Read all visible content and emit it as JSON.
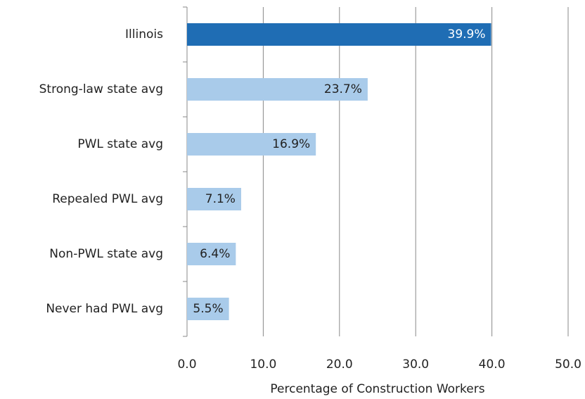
{
  "chart_data": {
    "type": "hbar",
    "x_label": "Percentage of Construction Workers",
    "categories": [
      "Illinois",
      "Strong-law state avg",
      "PWL state avg",
      "Repealed PWL avg",
      "Non-PWL state avg",
      "Never had PWL avg"
    ],
    "values": [
      39.9,
      23.7,
      16.9,
      7.1,
      6.4,
      5.5
    ],
    "value_labels": [
      "39.9%",
      "23.7%",
      "16.9%",
      "7.1%",
      "6.4%",
      "5.5%"
    ],
    "colors": [
      "#1f6db4",
      "#a9cbea",
      "#a9cbea",
      "#a9cbea",
      "#a9cbea",
      "#a9cbea"
    ],
    "xlim": [
      0,
      50
    ],
    "xticks": [
      {
        "value": 0,
        "label": "0.0"
      },
      {
        "value": 10,
        "label": "10.0"
      },
      {
        "value": 20,
        "label": "20.0"
      },
      {
        "value": 30,
        "label": "30.0"
      },
      {
        "value": 40,
        "label": "40.0"
      },
      {
        "value": 50,
        "label": "50.0"
      }
    ],
    "grid": true
  }
}
